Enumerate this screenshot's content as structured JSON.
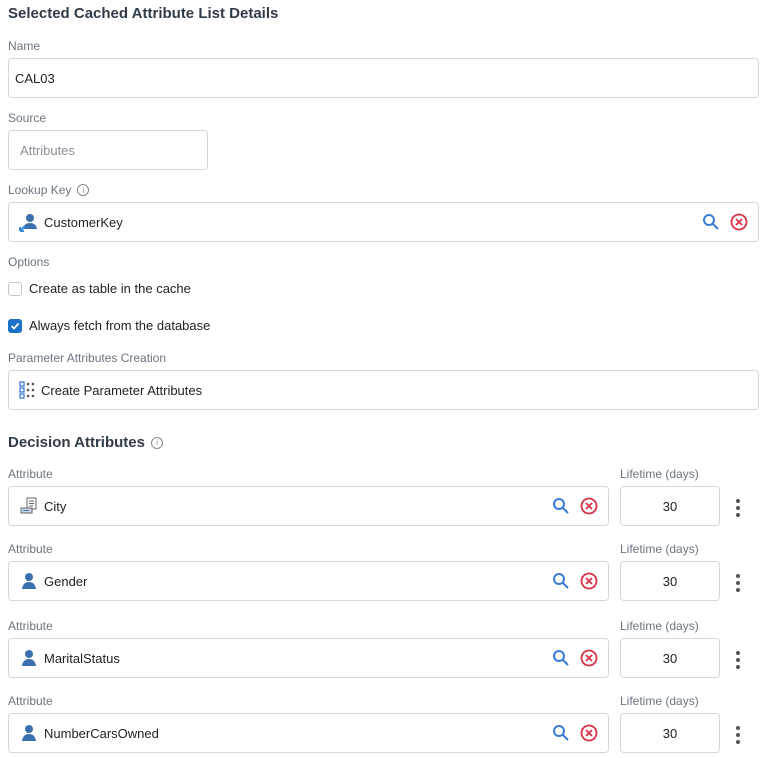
{
  "title": "Selected Cached Attribute List Details",
  "name": {
    "label": "Name",
    "value": "CAL03"
  },
  "source": {
    "label": "Source",
    "placeholder": "Attributes"
  },
  "lookup": {
    "label": "Lookup Key",
    "value": "CustomerKey",
    "icon": "key-attribute-icon"
  },
  "options": {
    "label": "Options",
    "items": [
      {
        "label": "Create as table in the cache",
        "checked": false
      },
      {
        "label": "Always fetch from the database",
        "checked": true
      }
    ]
  },
  "param": {
    "label": "Parameter Attributes Creation",
    "button": "Create Parameter Attributes"
  },
  "decision": {
    "heading": "Decision Attributes",
    "attr_label": "Attribute",
    "life_label": "Lifetime (days)",
    "rows": [
      {
        "name": "City",
        "icon": "form-attribute-icon",
        "lifetime": "30"
      },
      {
        "name": "Gender",
        "icon": "attribute-icon",
        "lifetime": "30"
      },
      {
        "name": "MaritalStatus",
        "icon": "attribute-icon",
        "lifetime": "30"
      },
      {
        "name": "NumberCarsOwned",
        "icon": "attribute-icon",
        "lifetime": "30"
      }
    ]
  },
  "colors": {
    "accent": "#1a73c9",
    "remove": "#d9314a",
    "attribute": "#3a6fb0"
  }
}
